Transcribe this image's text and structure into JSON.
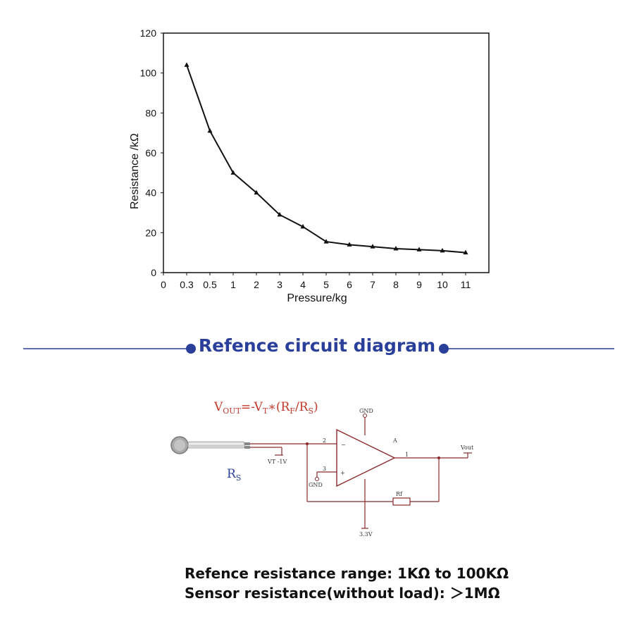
{
  "chart_data": {
    "type": "line",
    "title": "",
    "xlabel": "Pressure/kg",
    "ylabel": "Resistance /kΩ",
    "x_ticks": [
      "0",
      "0.3",
      "0.5",
      "1",
      "2",
      "3",
      "4",
      "5",
      "6",
      "7",
      "8",
      "9",
      "10",
      "11"
    ],
    "y_ticks": [
      "0",
      "20",
      "40",
      "60",
      "80",
      "100",
      "120"
    ],
    "ylim": [
      0,
      120
    ],
    "grid": false,
    "series": [
      {
        "x": [
          "0.3",
          "0.5",
          "1",
          "2",
          "3",
          "4",
          "5",
          "6",
          "7",
          "8",
          "9",
          "10",
          "11"
        ],
        "values": [
          104,
          71,
          50,
          40,
          29,
          23,
          15.5,
          14,
          13,
          12,
          11.5,
          11,
          10
        ]
      }
    ]
  },
  "section": {
    "title": "Refence circuit diagram",
    "accent_color": "#2a3f9a"
  },
  "circuit": {
    "formula_v": "V",
    "formula_v_sub": "OUT",
    "formula_mid": "=-V",
    "formula_t_sub": "T",
    "formula_star": "∗(R",
    "formula_f_sub": "F",
    "formula_slash": "/R",
    "formula_s_sub": "S",
    "formula_end": ")",
    "rs_label": "R",
    "rs_sub": "S",
    "vt_label": "VT -1V",
    "gnd_top": "GND",
    "gnd_left": "GND",
    "pin2": "2",
    "pin3": "3",
    "pin1": "1",
    "amp_label": "A",
    "vout_label": "Vout",
    "rf_label": "Rf",
    "supply_label": "3.3V",
    "formula_color": "#c0392b",
    "label_color": "#2a3f9a"
  },
  "specs": {
    "line1": "Refence resistance range: 1KΩ to 100KΩ",
    "line2": "Sensor resistance(without load): ＞1MΩ"
  }
}
